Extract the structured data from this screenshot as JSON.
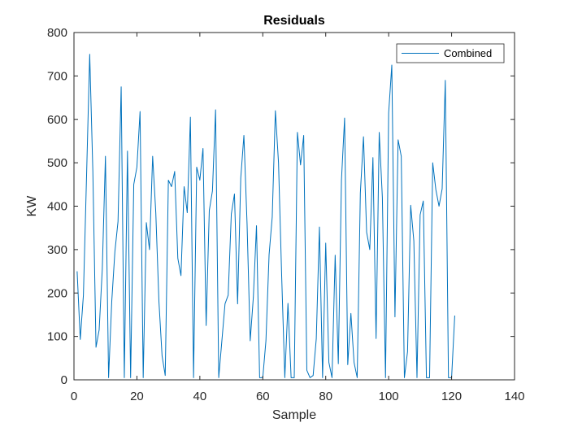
{
  "chart_data": {
    "type": "line",
    "title": "Residuals",
    "xlabel": "Sample",
    "ylabel": "KW",
    "xlim": [
      0,
      140
    ],
    "ylim": [
      0,
      800
    ],
    "xticks": [
      0,
      20,
      40,
      60,
      80,
      100,
      120,
      140
    ],
    "yticks": [
      0,
      100,
      200,
      300,
      400,
      500,
      600,
      700,
      800
    ],
    "grid": false,
    "legend_position": "top-right",
    "series": [
      {
        "name": "Combined",
        "color": "#0072BD",
        "x": [
          1,
          2,
          3,
          4,
          5,
          6,
          7,
          8,
          9,
          10,
          11,
          12,
          13,
          14,
          15,
          16,
          17,
          18,
          19,
          20,
          21,
          22,
          23,
          24,
          25,
          26,
          27,
          28,
          29,
          30,
          31,
          32,
          33,
          34,
          35,
          36,
          37,
          38,
          39,
          40,
          41,
          42,
          43,
          44,
          45,
          46,
          47,
          48,
          49,
          50,
          51,
          52,
          53,
          54,
          55,
          56,
          57,
          58,
          59,
          60,
          61,
          62,
          63,
          64,
          65,
          66,
          67,
          68,
          69,
          70,
          71,
          72,
          73,
          74,
          75,
          76,
          77,
          78,
          79,
          80,
          81,
          82,
          83,
          84,
          85,
          86,
          87,
          88,
          89,
          90,
          91,
          92,
          93,
          94,
          95,
          96,
          97,
          98,
          99,
          100,
          101,
          102,
          103,
          104,
          105,
          106,
          107,
          108,
          109,
          110,
          111,
          112,
          113,
          114,
          115,
          116,
          117,
          118,
          119,
          120,
          121
        ],
        "y": [
          250,
          93,
          195,
          470,
          750,
          480,
          75,
          115,
          255,
          515,
          5,
          180,
          295,
          365,
          675,
          5,
          527,
          5,
          450,
          490,
          618,
          5,
          362,
          300,
          515,
          385,
          180,
          55,
          10,
          460,
          445,
          480,
          280,
          240,
          445,
          385,
          605,
          5,
          490,
          460,
          533,
          125,
          390,
          435,
          622,
          5,
          90,
          175,
          195,
          382,
          428,
          175,
          465,
          563,
          360,
          90,
          190,
          355,
          5,
          5,
          90,
          288,
          375,
          620,
          500,
          240,
          5,
          176,
          5,
          5,
          570,
          495,
          563,
          22,
          5,
          10,
          95,
          352,
          5,
          315,
          40,
          5,
          287,
          37,
          460,
          603,
          35,
          153,
          40,
          5,
          430,
          560,
          340,
          300,
          512,
          95,
          570,
          420,
          5,
          615,
          725,
          145,
          553,
          515,
          5,
          65,
          402,
          320,
          5,
          380,
          412,
          5,
          5,
          500,
          438,
          400,
          440,
          690,
          5,
          5,
          148
        ]
      }
    ]
  }
}
